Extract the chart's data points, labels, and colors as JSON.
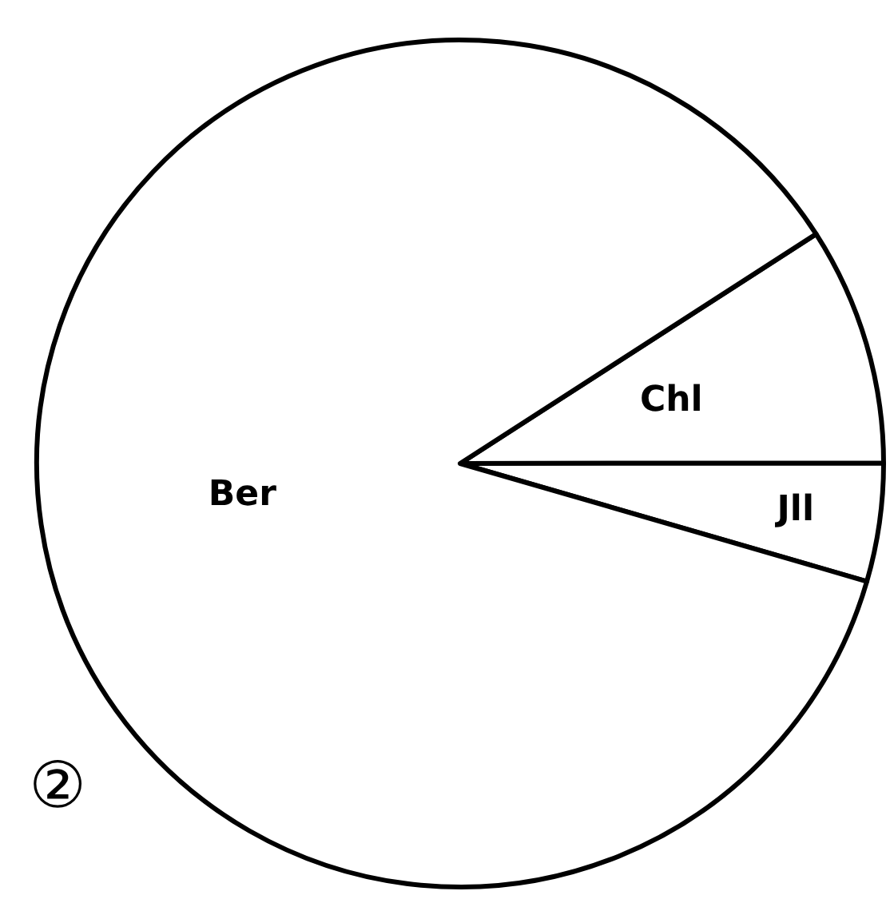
{
  "chart_data": {
    "type": "pie",
    "categories": [
      "Chl",
      "Jll",
      "Ber"
    ],
    "values": [
      9.1,
      4.5,
      86.4
    ],
    "colors": [
      "#ffffff",
      "#ffffff",
      "#ffffff"
    ],
    "annotations": [
      "②"
    ]
  }
}
